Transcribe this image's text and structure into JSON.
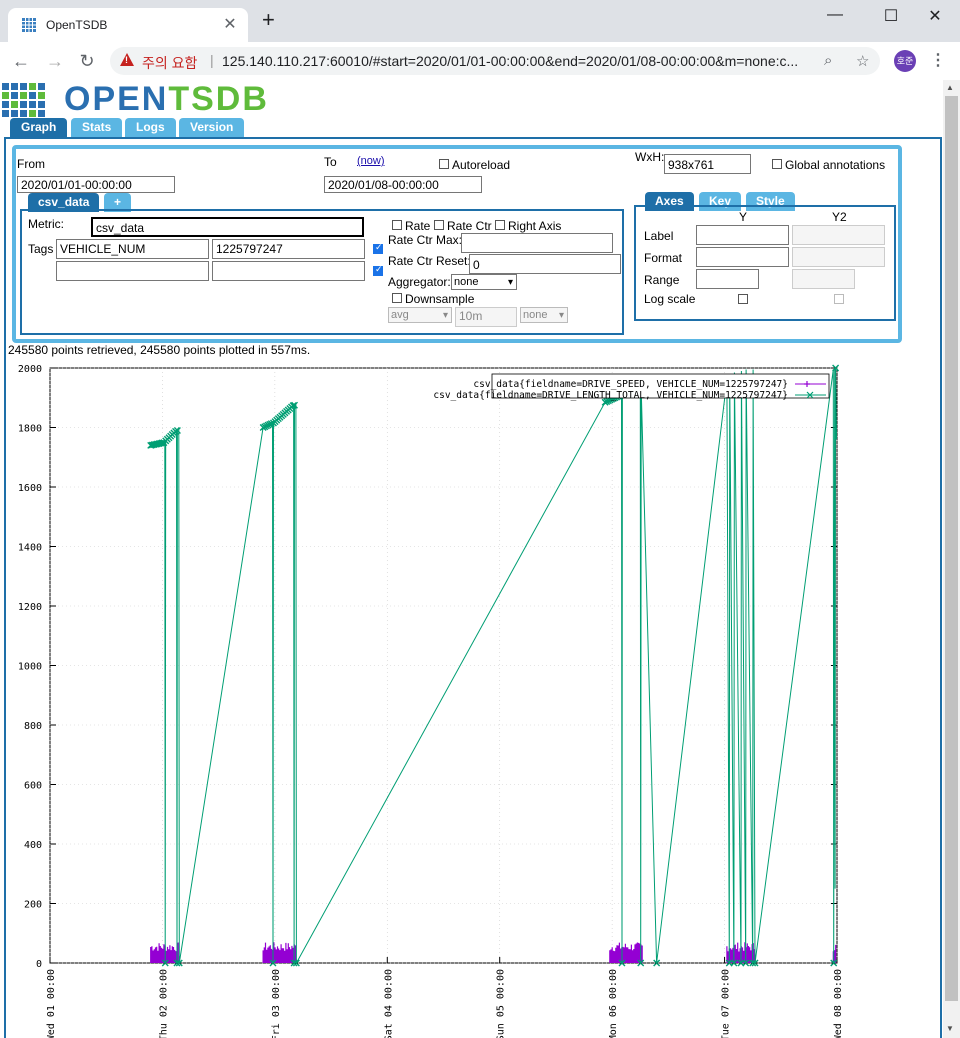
{
  "browser": {
    "tab_title": "OpenTSDB",
    "security_label": "주의 요함",
    "url": "125.140.110.217:60010/#start=2020/01/01-00:00:00&end=2020/01/08-00:00:00&m=none:c...",
    "profile_initials": "호준"
  },
  "app": {
    "logo_part1": "OPEN",
    "logo_part2": "TSDB",
    "tabs": [
      "Graph",
      "Stats",
      "Logs",
      "Version"
    ]
  },
  "query": {
    "from_label": "From",
    "from_value": "2020/01/01-00:00:00",
    "to_label": "To",
    "now_link": "(now)",
    "to_value": "2020/01/08-00:00:00",
    "autoreload_label": "Autoreload",
    "wxh_label": "WxH:",
    "wxh_value": "938x761",
    "global_annotations_label": "Global annotations",
    "metric_tab": "csv_data",
    "add_tab": "+",
    "metric_label": "Metric:",
    "metric_value": "csv_data",
    "tags_label": "Tags",
    "tag_key": "VEHICLE_NUM",
    "tag_value": "1225797247",
    "rate_label": "Rate",
    "rate_ctr_label": "Rate Ctr",
    "right_axis_label": "Right Axis",
    "rate_ctr_max_label": "Rate Ctr Max:",
    "rate_ctr_reset_label": "Rate Ctr Reset:",
    "rate_ctr_reset_value": "0",
    "aggregator_label": "Aggregator:",
    "aggregator_value": "none",
    "downsample_label": "Downsample",
    "downsample_func": "avg",
    "downsample_interval": "10m",
    "downsample_fill": "none"
  },
  "axes": {
    "tabs": [
      "Axes",
      "Key",
      "Style"
    ],
    "col_y": "Y",
    "col_y2": "Y2",
    "rows": [
      "Label",
      "Format",
      "Range",
      "Log scale"
    ]
  },
  "stats_text": "245580 points retrieved, 245580 points plotted in 557ms.",
  "chart_data": {
    "type": "line",
    "y_ticks": [
      0,
      200,
      400,
      600,
      800,
      1000,
      1200,
      1400,
      1600,
      1800,
      2000
    ],
    "ylim": [
      0,
      2000
    ],
    "x_ticks": [
      "Wed 01 00:00",
      "Thu 02 00:00",
      "Fri 03 00:00",
      "Sat 04 00:00",
      "Sun 05 00:00",
      "Mon 06 00:00",
      "Tue 07 00:00",
      "Wed 08 00:00"
    ],
    "xlim_hours": [
      0,
      168
    ],
    "series": [
      {
        "name": "csv_data{fieldname=DRIVE_SPEED, VEHICLE_NUM=1225797247}",
        "color": "#9400d3",
        "marker": "+",
        "segments": [
          [
            21.5,
            27.5
          ],
          [
            45.5,
            52.5
          ],
          [
            119.5,
            126.5
          ],
          [
            144.5,
            150.5
          ],
          [
            167.2,
            167.9
          ]
        ],
        "approx_max": 70
      },
      {
        "name": "csv_data{fieldname=DRIVE_LENGTH_TOTAL, VEHICLE_NUM=1225797247}",
        "color": "#009e73",
        "marker": "x",
        "points": [
          [
            21.5,
            1740
          ],
          [
            24.5,
            1750
          ],
          [
            24.6,
            0
          ],
          [
            24.7,
            1755
          ],
          [
            27.0,
            1790
          ],
          [
            27.1,
            0
          ],
          [
            27.2,
            1790
          ],
          [
            27.5,
            1800
          ],
          [
            27.6,
            0
          ],
          [
            45.5,
            1800
          ],
          [
            47.5,
            1815
          ],
          [
            47.6,
            0
          ],
          [
            47.7,
            1815
          ],
          [
            52.0,
            1875
          ],
          [
            52.1,
            0
          ],
          [
            52.2,
            1875
          ],
          [
            52.5,
            1880
          ],
          [
            52.6,
            0
          ],
          [
            118.5,
            1885
          ],
          [
            122.0,
            1910
          ],
          [
            122.1,
            0
          ],
          [
            122.2,
            1910
          ],
          [
            126.0,
            1930
          ],
          [
            126.1,
            0
          ],
          [
            126.2,
            1930
          ],
          [
            129.5,
            0
          ],
          [
            144.5,
            1960
          ],
          [
            145.0,
            0
          ],
          [
            145.1,
            1975
          ],
          [
            146.0,
            0
          ],
          [
            146.1,
            1985
          ],
          [
            147.5,
            0
          ],
          [
            147.6,
            1990
          ],
          [
            148.5,
            0
          ],
          [
            148.6,
            1995
          ],
          [
            150.0,
            0
          ],
          [
            150.1,
            1995
          ],
          [
            150.5,
            0
          ],
          [
            167.2,
            1995
          ],
          [
            167.3,
            0
          ],
          [
            167.5,
            2000
          ],
          [
            167.6,
            250
          ],
          [
            167.7,
            2000
          ],
          [
            167.9,
            1760
          ]
        ]
      }
    ]
  }
}
